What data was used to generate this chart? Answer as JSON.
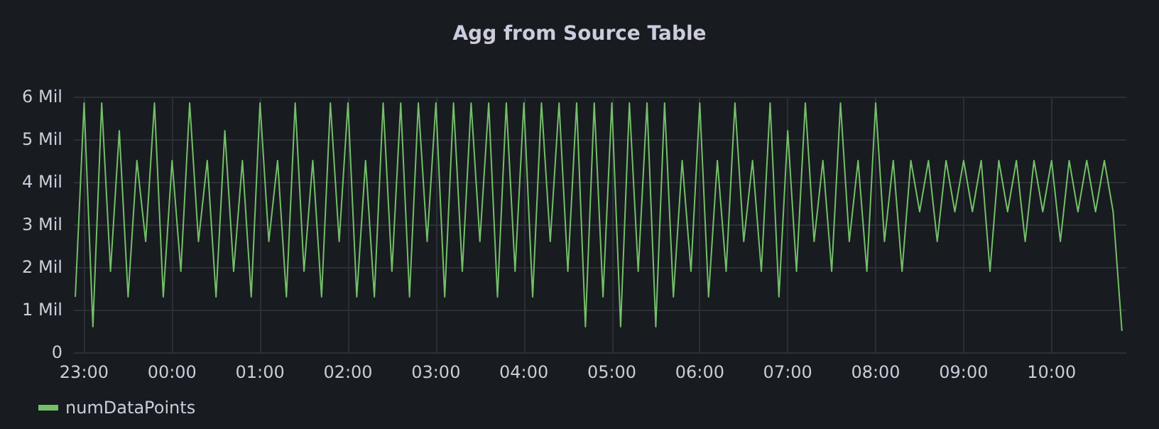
{
  "chart_data": {
    "type": "line",
    "title": "Agg from Source Table",
    "legend": "bottom left",
    "grid": true,
    "marker": "none",
    "line_style": "solid",
    "xlim": [
      "--01-01T22:53",
      "--01-02T10:51"
    ],
    "xticks": [
      {
        "value": "--01-01T23:00",
        "label": "23:00"
      },
      {
        "value": "--01-02T00:00",
        "label": "00:00"
      },
      {
        "value": "--01-02T01:00",
        "label": "01:00"
      },
      {
        "value": "--01-02T02:00",
        "label": "02:00"
      },
      {
        "value": "--01-02T03:00",
        "label": "03:00"
      },
      {
        "value": "--01-02T04:00",
        "label": "04:00"
      },
      {
        "value": "--01-02T05:00",
        "label": "05:00"
      },
      {
        "value": "--01-02T06:00",
        "label": "06:00"
      },
      {
        "value": "--01-02T07:00",
        "label": "07:00"
      },
      {
        "value": "--01-02T08:00",
        "label": "08:00"
      },
      {
        "value": "--01-02T09:00",
        "label": "09:00"
      },
      {
        "value": "--01-02T10:00",
        "label": "10:00"
      }
    ],
    "ylim": [
      0,
      6
    ],
    "yticks": [
      0,
      {
        "value": 1,
        "label": "1 Mil"
      },
      {
        "value": 2,
        "label": "2 Mil"
      },
      {
        "value": 3,
        "label": "3 Mil"
      },
      {
        "value": 4,
        "label": "4 Mil"
      },
      {
        "value": 5,
        "label": "5 Mil"
      },
      {
        "value": 6,
        "label": "6 Mil"
      }
    ],
    "x": [
      "--01-01T22:54",
      "--01-01T23:00",
      "--01-01T23:06",
      "--01-01T23:12",
      "--01-01T23:18",
      "--01-01T23:24",
      "--01-01T23:30",
      "--01-01T23:36",
      "--01-01T23:42",
      "--01-01T23:48",
      "--01-01T23:54",
      "--01-02T00:00",
      "--01-02T00:06",
      "--01-02T00:12",
      "--01-02T00:18",
      "--01-02T00:24",
      "--01-02T00:30",
      "--01-02T00:36",
      "--01-02T00:42",
      "--01-02T00:48",
      "--01-02T00:54",
      "--01-02T01:00",
      "--01-02T01:06",
      "--01-02T01:12",
      "--01-02T01:18",
      "--01-02T01:24",
      "--01-02T01:30",
      "--01-02T01:36",
      "--01-02T01:42",
      "--01-02T01:48",
      "--01-02T01:54",
      "--01-02T02:00",
      "--01-02T02:06",
      "--01-02T02:12",
      "--01-02T02:18",
      "--01-02T02:24",
      "--01-02T02:30",
      "--01-02T02:36",
      "--01-02T02:42",
      "--01-02T02:48",
      "--01-02T02:54",
      "--01-02T03:00",
      "--01-02T03:06",
      "--01-02T03:12",
      "--01-02T03:18",
      "--01-02T03:24",
      "--01-02T03:30",
      "--01-02T03:36",
      "--01-02T03:42",
      "--01-02T03:48",
      "--01-02T03:54",
      "--01-02T04:00",
      "--01-02T04:06",
      "--01-02T04:12",
      "--01-02T04:18",
      "--01-02T04:24",
      "--01-02T04:30",
      "--01-02T04:36",
      "--01-02T04:42",
      "--01-02T04:48",
      "--01-02T04:54",
      "--01-02T05:00",
      "--01-02T05:06",
      "--01-02T05:12",
      "--01-02T05:18",
      "--01-02T05:24",
      "--01-02T05:30",
      "--01-02T05:36",
      "--01-02T05:42",
      "--01-02T05:48",
      "--01-02T05:54",
      "--01-02T06:00",
      "--01-02T06:06",
      "--01-02T06:12",
      "--01-02T06:18",
      "--01-02T06:24",
      "--01-02T06:30",
      "--01-02T06:36",
      "--01-02T06:42",
      "--01-02T06:48",
      "--01-02T06:54",
      "--01-02T07:00",
      "--01-02T07:06",
      "--01-02T07:12",
      "--01-02T07:18",
      "--01-02T07:24",
      "--01-02T07:30",
      "--01-02T07:36",
      "--01-02T07:42",
      "--01-02T07:48",
      "--01-02T07:54",
      "--01-02T08:00",
      "--01-02T08:06",
      "--01-02T08:12",
      "--01-02T08:18",
      "--01-02T08:24",
      "--01-02T08:30",
      "--01-02T08:36",
      "--01-02T08:42",
      "--01-02T08:48",
      "--01-02T08:54",
      "--01-02T09:00",
      "--01-02T09:06",
      "--01-02T09:12",
      "--01-02T09:18",
      "--01-02T09:24",
      "--01-02T09:30",
      "--01-02T09:36",
      "--01-02T09:42",
      "--01-02T09:48",
      "--01-02T09:54",
      "--01-02T10:00",
      "--01-02T10:06",
      "--01-02T10:12",
      "--01-02T10:18",
      "--01-02T10:24",
      "--01-02T10:30",
      "--01-02T10:36",
      "--01-02T10:42",
      "--01-02T10:48"
    ],
    "series": [
      {
        "name": "numDataPoints",
        "color": "#73bf69",
        "values": [
          1.3,
          5.85,
          0.6,
          5.85,
          1.9,
          5.2,
          1.3,
          4.5,
          2.6,
          5.85,
          1.3,
          4.5,
          1.9,
          5.85,
          2.6,
          4.5,
          1.3,
          5.2,
          1.9,
          4.5,
          1.3,
          5.85,
          2.6,
          4.5,
          1.3,
          5.85,
          1.9,
          4.5,
          1.3,
          5.85,
          2.6,
          5.85,
          1.3,
          4.5,
          1.3,
          5.85,
          1.9,
          5.85,
          1.3,
          5.85,
          2.6,
          5.85,
          1.3,
          5.85,
          1.9,
          5.85,
          2.6,
          5.85,
          1.3,
          5.85,
          1.9,
          5.85,
          1.3,
          5.85,
          2.6,
          5.85,
          1.9,
          5.85,
          0.6,
          5.85,
          1.3,
          5.85,
          0.6,
          5.85,
          1.9,
          5.85,
          0.6,
          5.85,
          1.3,
          4.5,
          1.9,
          5.85,
          1.3,
          4.5,
          1.9,
          5.85,
          2.6,
          4.5,
          1.9,
          5.85,
          1.3,
          5.2,
          1.9,
          5.85,
          2.6,
          4.5,
          1.9,
          5.85,
          2.6,
          4.5,
          1.9,
          5.85,
          2.6,
          4.5,
          1.9,
          4.5,
          3.3,
          4.5,
          2.6,
          4.5,
          3.3,
          4.5,
          3.3,
          4.5,
          1.9,
          4.5,
          3.3,
          4.5,
          2.6,
          4.5,
          3.3,
          4.5,
          2.6,
          4.5,
          3.3,
          4.5,
          3.3,
          4.5,
          3.3,
          0.5
        ]
      }
    ]
  }
}
